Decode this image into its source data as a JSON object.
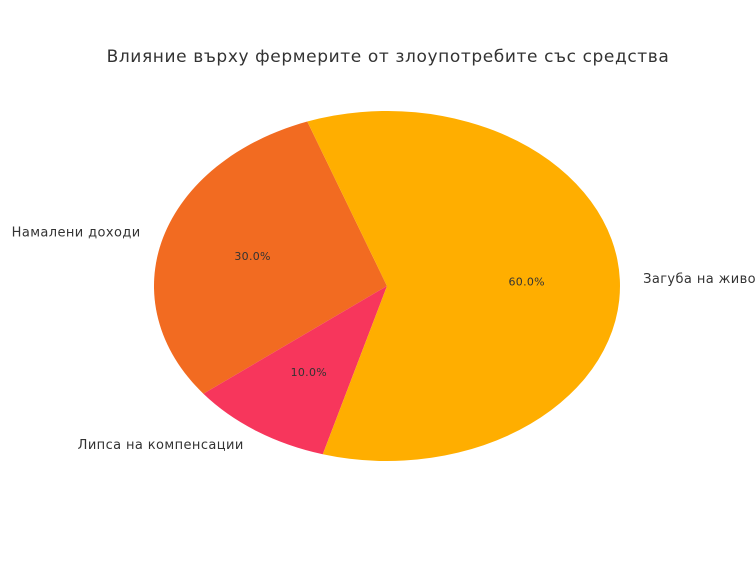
{
  "chart_data": {
    "type": "pie",
    "title": "Влияние върху фермерите от злоупотребите със средства",
    "start_angle_deg": 110,
    "direction": "counterclockwise",
    "slices": [
      {
        "label": "Намалени доходи",
        "value": 30,
        "pct_label": "30.0%",
        "color": "#F26B21"
      },
      {
        "label": "Липса на компенсации",
        "value": 10,
        "pct_label": "10.0%",
        "color": "#F7365C"
      },
      {
        "label": "Загуба на животни",
        "value": 60,
        "pct_label": "60.0%",
        "color": "#FFAE00"
      }
    ]
  }
}
